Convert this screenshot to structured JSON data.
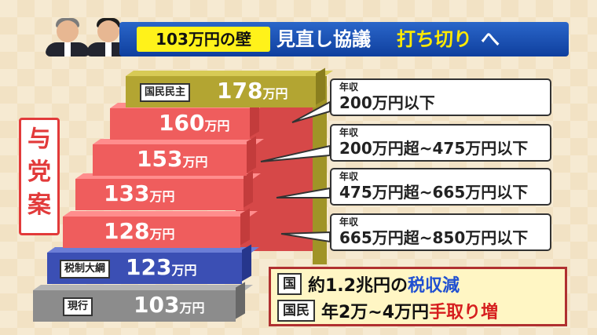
{
  "title": {
    "pill": "103万円の壁",
    "main": "見直し協議",
    "accent": "打ち切り",
    "tail": "へ"
  },
  "side_label": [
    "与",
    "党",
    "案"
  ],
  "steps": [
    {
      "tag": "国民民主",
      "amount": "178",
      "unit": "万円",
      "color": "#b3a532"
    },
    {
      "tag": "",
      "amount": "160",
      "unit": "万円",
      "color": "#ef5d5d"
    },
    {
      "tag": "",
      "amount": "153",
      "unit": "万円",
      "color": "#ef5d5d"
    },
    {
      "tag": "",
      "amount": "133",
      "unit": "万円",
      "color": "#ef5d5d"
    },
    {
      "tag": "",
      "amount": "128",
      "unit": "万円",
      "color": "#ef5d5d"
    },
    {
      "tag": "税制大綱",
      "amount": "123",
      "unit": "万円",
      "color": "#3b4fb4"
    },
    {
      "tag": "現行",
      "amount": "103",
      "unit": "万円",
      "color": "#8c8c8c"
    }
  ],
  "callouts": [
    {
      "label": "年収",
      "range": "200万円以下"
    },
    {
      "label": "年収",
      "range": "200万円超~475万円以下"
    },
    {
      "label": "年収",
      "range": "475万円超~665万円以下"
    },
    {
      "label": "年収",
      "range": "665万円超~850万円以下"
    }
  ],
  "summary": {
    "row1_tag": "国",
    "row1_text": "約1.2兆円の",
    "row1_accent": "税収減",
    "row2_tag": "国民",
    "row2_text": "年2万~4万円",
    "row2_accent": "手取り増"
  }
}
